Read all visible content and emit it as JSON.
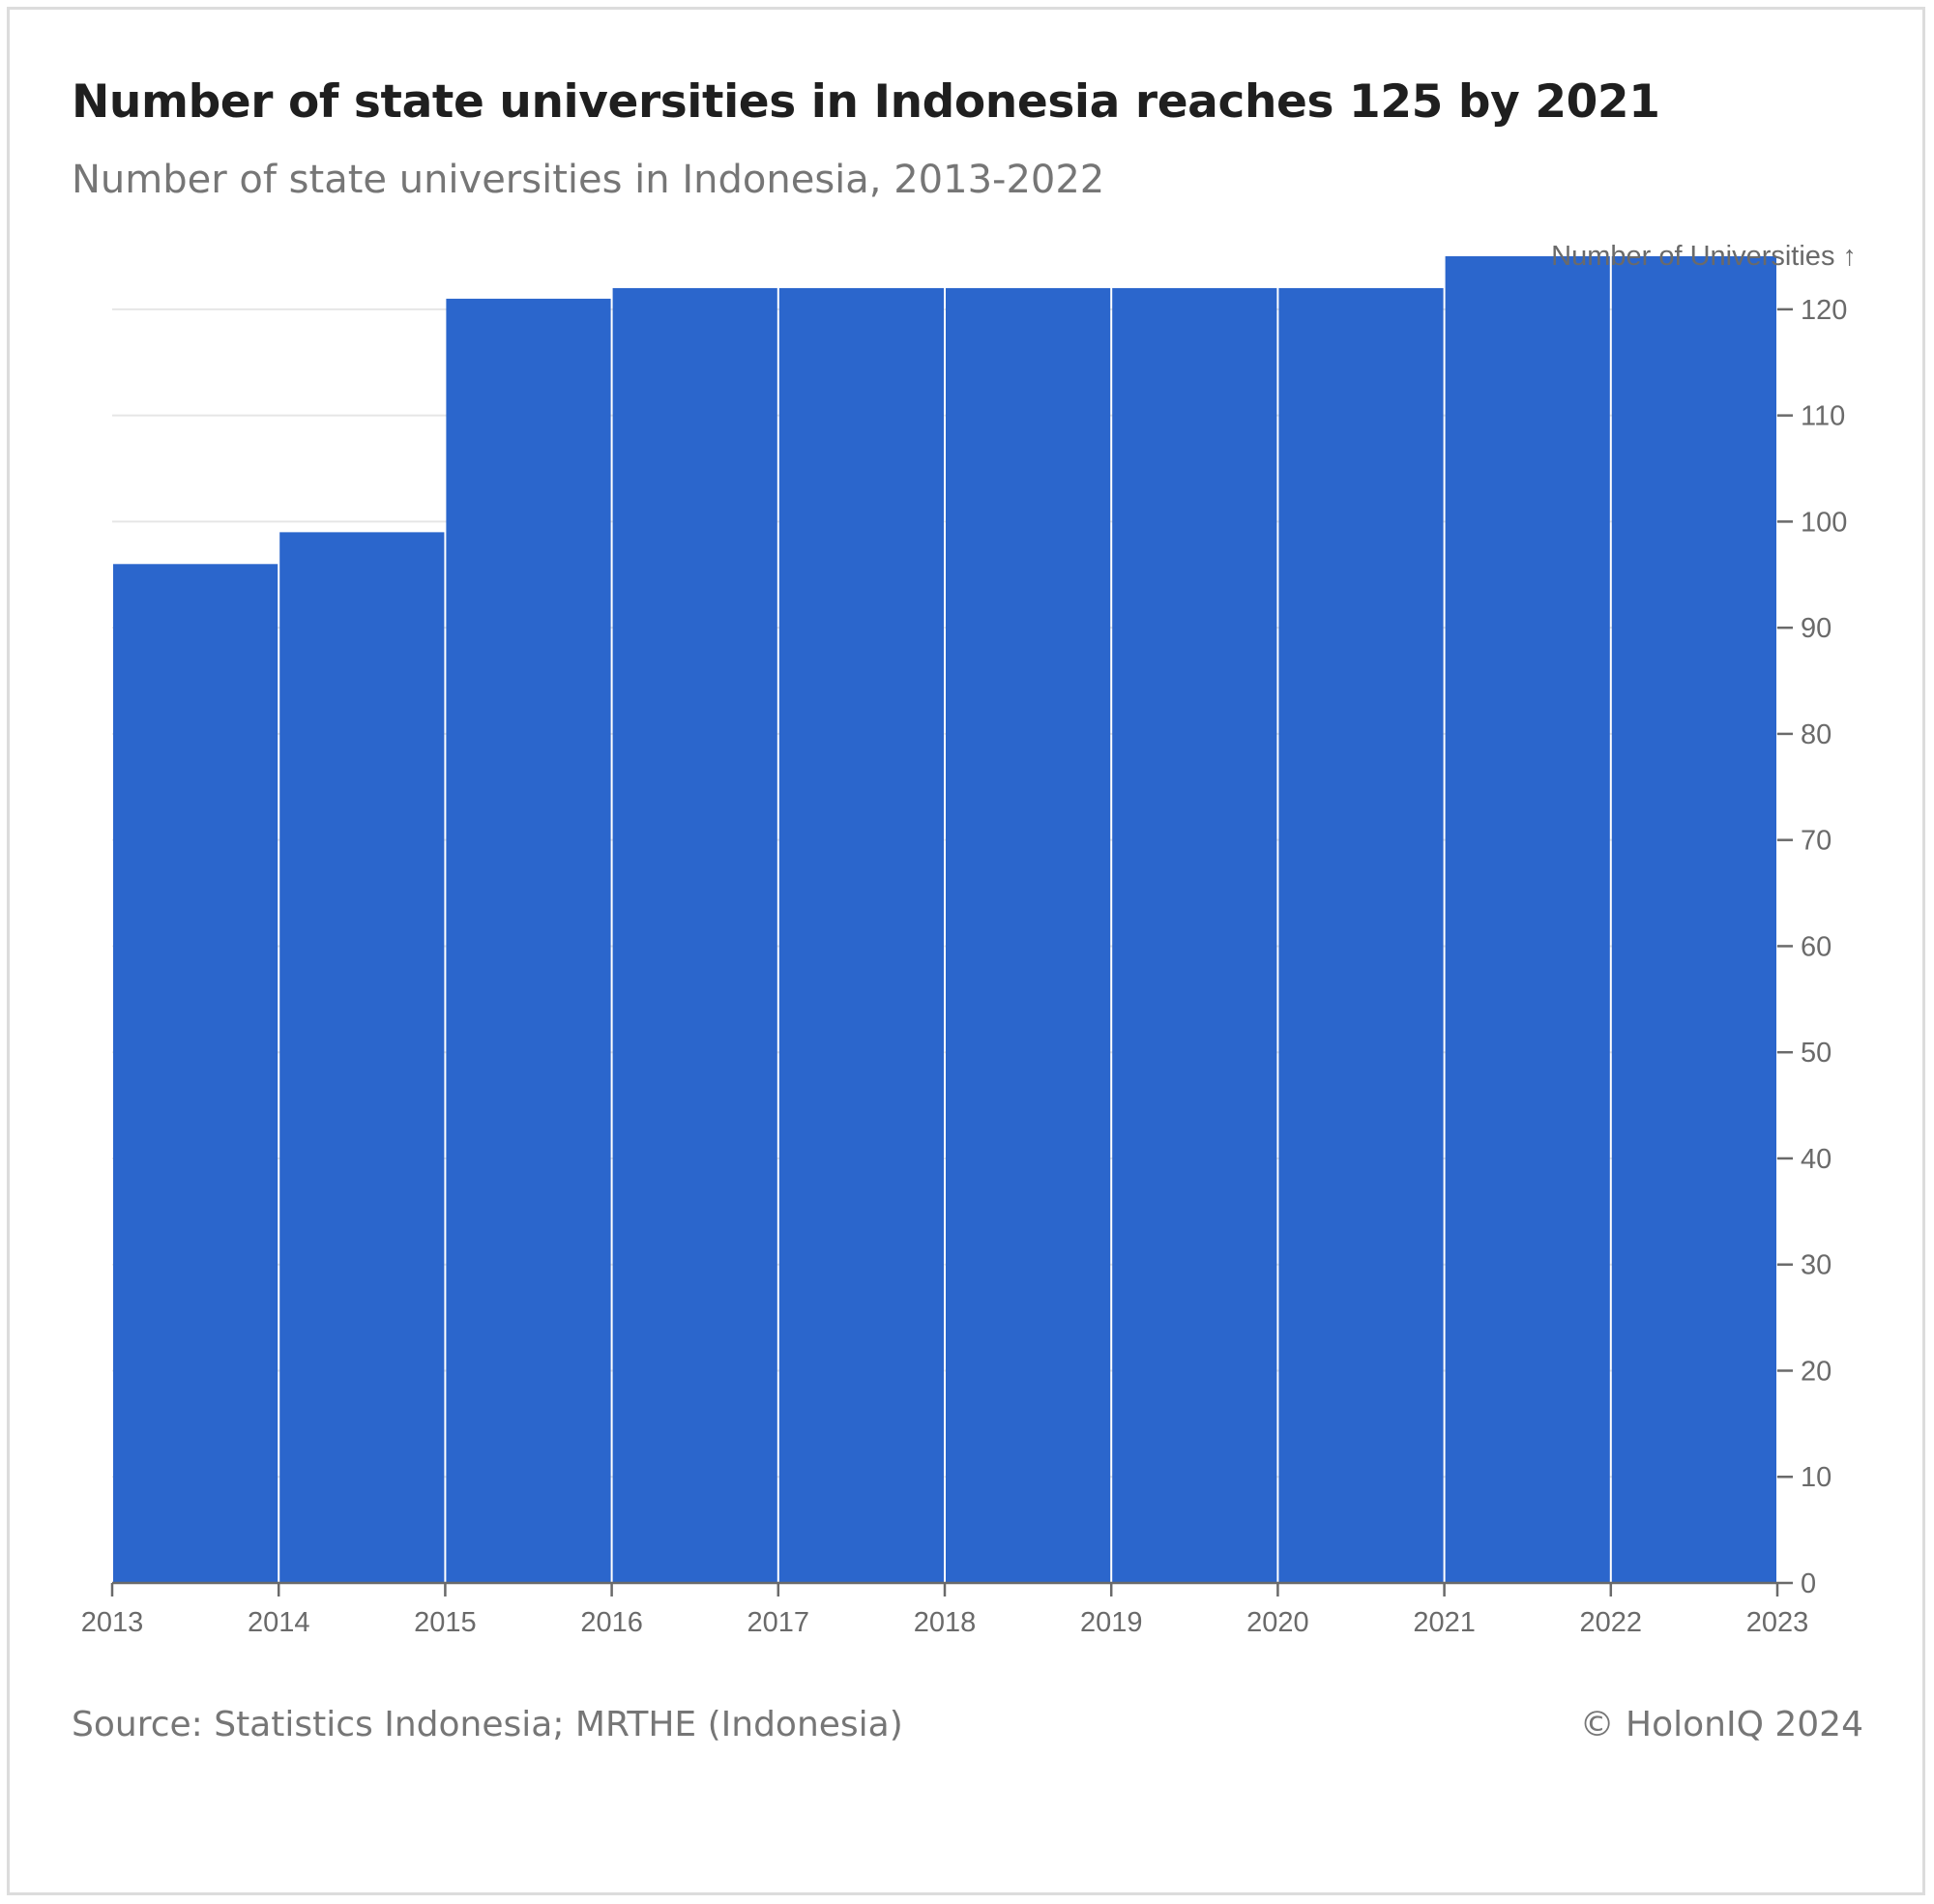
{
  "header": {
    "title": "Number of state universities in Indonesia reaches 125 by 2021",
    "subtitle": "Number of state universities in Indonesia, 2013-2022"
  },
  "footer": {
    "source": "Source: Statistics Indonesia; MRTHE (Indonesia)",
    "copyright": "© HolonIQ 2024"
  },
  "colors": {
    "bar": "#2b66cc",
    "grid": "#e6e6e6",
    "axis": "#6a6a6a"
  },
  "chart_data": {
    "type": "bar",
    "title": "Number of state universities in Indonesia reaches 125 by 2021",
    "subtitle": "Number of state universities in Indonesia, 2013-2022",
    "ylabel": "Number of Universities ↑",
    "xlabel": "",
    "y_axis_position": "right",
    "grid": true,
    "legend": "none",
    "categories": [
      "2013",
      "2014",
      "2015",
      "2016",
      "2017",
      "2018",
      "2019",
      "2020",
      "2021",
      "2022"
    ],
    "values": [
      96,
      99,
      121,
      122,
      122,
      122,
      122,
      122,
      125,
      125
    ],
    "x_ticks": [
      "2013",
      "2014",
      "2015",
      "2016",
      "2017",
      "2018",
      "2019",
      "2020",
      "2021",
      "2022",
      "2023"
    ],
    "y_ticks": [
      0,
      10,
      20,
      30,
      40,
      50,
      60,
      70,
      80,
      90,
      100,
      110,
      120
    ],
    "ylim": [
      0,
      125
    ]
  }
}
